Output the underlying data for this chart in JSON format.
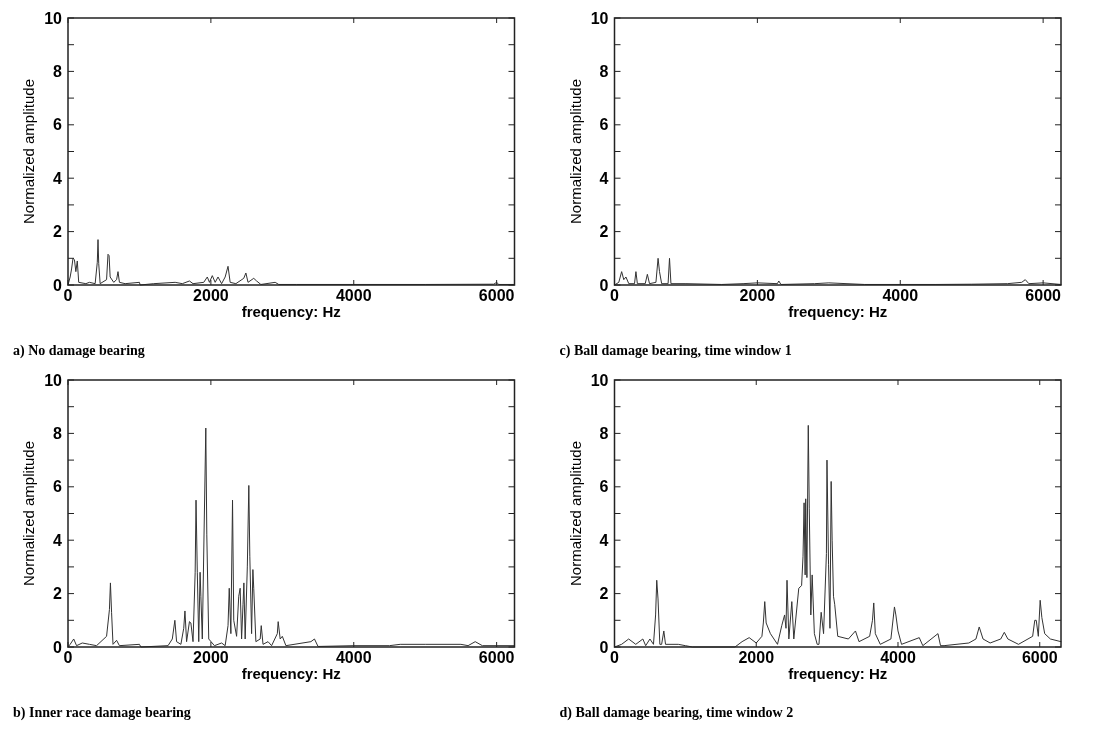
{
  "chart_data": [
    {
      "type": "line",
      "title": "a) No damage bearing",
      "xlabel": "frequency: Hz",
      "ylabel": "Normalized amplitude",
      "xlim": [
        0,
        6250
      ],
      "xticks": [
        0,
        2000,
        4000,
        6000
      ],
      "ylim": [
        0,
        10
      ],
      "yticks": [
        0,
        {
          "value": 1,
          "label": null
        },
        2,
        {
          "value": 3,
          "label": null
        },
        4,
        {
          "value": 5,
          "label": null
        },
        6,
        {
          "value": 7,
          "label": null
        },
        8,
        {
          "value": 9,
          "label": null
        },
        10
      ],
      "grid": false,
      "series": [
        {
          "color": "#333333",
          "x": [
            0,
            30,
            50,
            70,
            90,
            110,
            130,
            150,
            250,
            300,
            380,
            410,
            420,
            430,
            450,
            540,
            560,
            575,
            590,
            640,
            680,
            700,
            720,
            800,
            1000,
            1010,
            1200,
            1500,
            1600,
            1700,
            1750,
            1900,
            1950,
            1980,
            2020,
            2060,
            2100,
            2150,
            2200,
            2240,
            2270,
            2350,
            2460,
            2490,
            2520,
            2600,
            2640,
            2700,
            2900,
            2950,
            3200,
            4000,
            5000,
            5960,
            6000,
            6030,
            6250
          ],
          "values": [
            0,
            0.3,
            0.6,
            1.0,
            0.95,
            0.5,
            0.9,
            0.1,
            0.05,
            0.1,
            0.05,
            0.85,
            1.7,
            0.8,
            0.05,
            0.2,
            1.15,
            1.1,
            0.3,
            0.1,
            0.2,
            0.5,
            0.1,
            0.05,
            0.1,
            0,
            0.05,
            0.1,
            0.05,
            0.15,
            0.05,
            0.1,
            0.3,
            0.1,
            0.35,
            0.1,
            0.3,
            0.05,
            0.3,
            0.7,
            0.1,
            0.05,
            0.25,
            0.45,
            0.1,
            0.25,
            0.15,
            0.02,
            0.1,
            0.02,
            0.02,
            0.02,
            0.02,
            0.03,
            0.1,
            0.02,
            0.02
          ]
        }
      ]
    },
    {
      "type": "line",
      "title": "c) Ball damage bearing, time window 1",
      "xlabel": "frequency: Hz",
      "ylabel": "Normalized amplitude",
      "xlim": [
        0,
        6250
      ],
      "xticks": [
        0,
        2000,
        4000,
        6000
      ],
      "ylim": [
        0,
        10
      ],
      "yticks": [
        0,
        {
          "value": 1,
          "label": null
        },
        2,
        {
          "value": 3,
          "label": null
        },
        4,
        {
          "value": 5,
          "label": null
        },
        6,
        {
          "value": 7,
          "label": null
        },
        8,
        {
          "value": 9,
          "label": null
        },
        10
      ],
      "grid": false,
      "series": [
        {
          "color": "#333333",
          "x": [
            0,
            60,
            100,
            130,
            160,
            200,
            280,
            300,
            320,
            430,
            460,
            490,
            580,
            610,
            630,
            660,
            750,
            770,
            790,
            1000,
            1500,
            1800,
            2000,
            2280,
            2300,
            2330,
            2800,
            3000,
            3500,
            4500,
            5000,
            5500,
            5700,
            5750,
            5800,
            6000,
            6250
          ],
          "values": [
            0,
            0.1,
            0.5,
            0.2,
            0.3,
            0.05,
            0.05,
            0.5,
            0.05,
            0.05,
            0.4,
            0.05,
            0.1,
            1.0,
            0.5,
            0.05,
            0.05,
            1.0,
            0.05,
            0.05,
            0.02,
            0.05,
            0.08,
            0.05,
            0.15,
            0.02,
            0.05,
            0.08,
            0.02,
            0.02,
            0.03,
            0.05,
            0.1,
            0.2,
            0.05,
            0.08,
            0.02
          ]
        }
      ]
    },
    {
      "type": "line",
      "title": "b) Inner race damage bearing",
      "xlabel": "frequency: Hz",
      "ylabel": "Normalized amplitude",
      "xlim": [
        0,
        6250
      ],
      "xticks": [
        0,
        2000,
        4000,
        6000
      ],
      "ylim": [
        0,
        10
      ],
      "yticks": [
        0,
        {
          "value": 1,
          "label": null
        },
        2,
        {
          "value": 3,
          "label": null
        },
        4,
        {
          "value": 5,
          "label": null
        },
        6,
        {
          "value": 7,
          "label": null
        },
        8,
        {
          "value": 9,
          "label": null
        },
        10
      ],
      "grid": false,
      "series": [
        {
          "color": "#333333",
          "x": [
            0,
            30,
            80,
            120,
            200,
            300,
            400,
            540,
            580,
            594,
            610,
            630,
            680,
            720,
            1000,
            1020,
            1400,
            1460,
            1496,
            1520,
            1580,
            1620,
            1637,
            1660,
            1700,
            1720,
            1750,
            1780,
            1792,
            1810,
            1830,
            1849,
            1860,
            1880,
            1929,
            1943,
            1970,
            2050,
            2150,
            2200,
            2240,
            2257,
            2280,
            2303,
            2320,
            2360,
            2390,
            2410,
            2430,
            2450,
            2462,
            2480,
            2510,
            2531,
            2545,
            2570,
            2588,
            2600,
            2630,
            2690,
            2705,
            2730,
            2800,
            2850,
            2930,
            2942,
            2970,
            3000,
            3050,
            3400,
            3450,
            3500,
            4000,
            4500,
            4650,
            5000,
            5500,
            5600,
            5700,
            5800,
            6000,
            6250
          ],
          "values": [
            0,
            0.1,
            0.3,
            0.05,
            0.15,
            0.1,
            0.05,
            0.4,
            1.4,
            2.4,
            1.3,
            0.1,
            0.25,
            0.05,
            0.1,
            0,
            0.05,
            0.3,
            1.0,
            0.2,
            0.1,
            0.7,
            1.35,
            0.2,
            0.95,
            0.9,
            0.2,
            2.8,
            5.5,
            2.8,
            0.2,
            2.8,
            1.9,
            0.3,
            8.2,
            4.2,
            0.3,
            0.05,
            0.15,
            0.05,
            0.8,
            2.2,
            0.5,
            5.5,
            1.0,
            0.4,
            1.9,
            2.2,
            0.3,
            1.6,
            2.4,
            0.3,
            3.0,
            6.05,
            3.4,
            0.5,
            2.9,
            2.2,
            0.2,
            0.3,
            0.8,
            0.1,
            0.2,
            0.05,
            0.5,
            0.95,
            0.3,
            0.4,
            0.05,
            0.2,
            0.3,
            0.02,
            0.05,
            0.05,
            0.1,
            0.1,
            0.1,
            0.05,
            0.2,
            0.05,
            0.05,
            0.05
          ]
        }
      ]
    },
    {
      "type": "line",
      "title": "d) Ball damage bearing, time window 2",
      "xlabel": "frequency: Hz",
      "ylabel": "Normalized amplitude",
      "xlim": [
        0,
        6300
      ],
      "xticks": [
        0,
        2000,
        4000,
        6000
      ],
      "ylim": [
        0,
        10
      ],
      "yticks": [
        0,
        {
          "value": 1,
          "label": null
        },
        2,
        {
          "value": 3,
          "label": null
        },
        4,
        {
          "value": 5,
          "label": null
        },
        6,
        {
          "value": 7,
          "label": null
        },
        8,
        {
          "value": 9,
          "label": null
        },
        10
      ],
      "grid": false,
      "series": [
        {
          "color": "#333333",
          "x": [
            0,
            100,
            200,
            300,
            400,
            440,
            500,
            550,
            580,
            596,
            614,
            640,
            665,
            696,
            720,
            900,
            1000,
            1100,
            1700,
            1800,
            1900,
            2000,
            2080,
            2100,
            2120,
            2140,
            2200,
            2300,
            2360,
            2400,
            2420,
            2434,
            2460,
            2502,
            2530,
            2600,
            2640,
            2660,
            2675,
            2690,
            2698,
            2715,
            2734,
            2748,
            2770,
            2789,
            2820,
            2860,
            2885,
            2916,
            2950,
            2990,
            2998,
            3020,
            3040,
            3057,
            3071,
            3090,
            3107,
            3150,
            3300,
            3400,
            3450,
            3600,
            3640,
            3658,
            3680,
            3750,
            3900,
            3950,
            3970,
            4000,
            4050,
            4300,
            4350,
            4564,
            4600,
            4650,
            5000,
            5100,
            5146,
            5200,
            5300,
            5450,
            5500,
            5550,
            5700,
            5900,
            5930,
            5951,
            5980,
            6006,
            6030,
            6070,
            6150,
            6300
          ],
          "values": [
            0,
            0.1,
            0.3,
            0.1,
            0.3,
            0.05,
            0.3,
            0.1,
            1.2,
            2.5,
            1.8,
            0.1,
            0.1,
            0.6,
            0.1,
            0.1,
            0.05,
            0,
            0,
            0.2,
            0.35,
            0.15,
            0.4,
            0.9,
            1.7,
            0.9,
            0.5,
            0.1,
            0.8,
            1.2,
            0.7,
            2.5,
            0.3,
            1.7,
            0.3,
            2.2,
            2.3,
            3.4,
            5.4,
            2.7,
            5.55,
            2.6,
            8.3,
            5.2,
            1.2,
            2.7,
            0.5,
            0.1,
            0.1,
            1.3,
            0.5,
            3.5,
            7.0,
            3.1,
            0.7,
            6.2,
            4.0,
            1.9,
            1.6,
            0.4,
            0.3,
            0.6,
            0.2,
            0.4,
            1.0,
            1.65,
            0.5,
            0.1,
            0.3,
            1.5,
            1.2,
            0.6,
            0.1,
            0.35,
            0.05,
            0.5,
            0.05,
            0.05,
            0.15,
            0.3,
            0.75,
            0.3,
            0.15,
            0.3,
            0.55,
            0.3,
            0.1,
            0.4,
            1.0,
            1.0,
            0.4,
            1.75,
            1.1,
            0.5,
            0.3,
            0.2
          ]
        }
      ]
    }
  ]
}
